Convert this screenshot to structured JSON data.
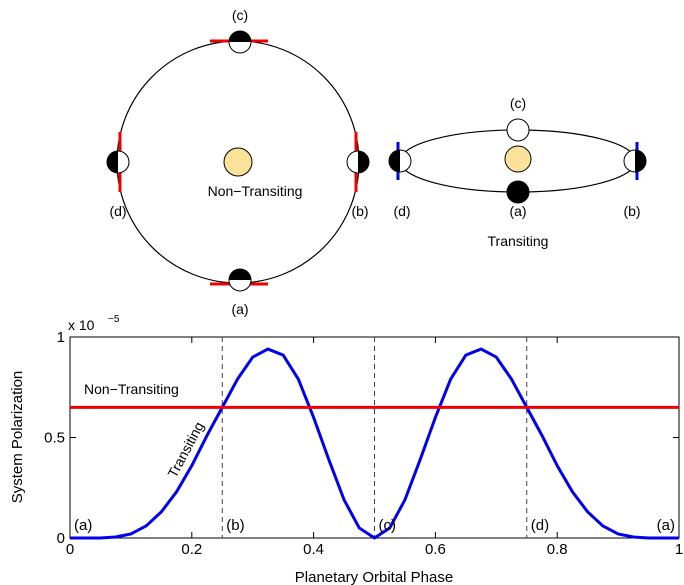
{
  "diagram": {
    "left_label": "Non−Transiting",
    "left_phases": {
      "a": "(a)",
      "b": "(b)",
      "c": "(c)",
      "d": "(d)"
    },
    "right_label": "Transiting",
    "right_phases": {
      "a": "(a)",
      "b": "(b)",
      "c": "(c)",
      "d": "(d)"
    }
  },
  "chart_data": {
    "type": "line",
    "x_label": "Planetary Orbital Phase",
    "y_label": "System Polarization",
    "y_multiplier": "x 10",
    "y_multiplier_exponent": "−5",
    "x": [
      0,
      0.025,
      0.05,
      0.075,
      0.1,
      0.125,
      0.15,
      0.175,
      0.2,
      0.225,
      0.25,
      0.275,
      0.3,
      0.325,
      0.35,
      0.375,
      0.4,
      0.425,
      0.45,
      0.475,
      0.5,
      0.525,
      0.55,
      0.575,
      0.6,
      0.625,
      0.65,
      0.675,
      0.7,
      0.725,
      0.75,
      0.775,
      0.8,
      0.825,
      0.85,
      0.875,
      0.9,
      0.925,
      0.95,
      0.975,
      1
    ],
    "series": [
      {
        "name": "Transiting",
        "color": "#0000ee",
        "values": [
          0,
          0,
          0,
          0.005,
          0.02,
          0.06,
          0.13,
          0.23,
          0.36,
          0.51,
          0.65,
          0.79,
          0.9,
          0.94,
          0.91,
          0.79,
          0.6,
          0.39,
          0.19,
          0.05,
          0,
          0.05,
          0.19,
          0.39,
          0.6,
          0.79,
          0.91,
          0.94,
          0.9,
          0.79,
          0.65,
          0.51,
          0.36,
          0.23,
          0.13,
          0.06,
          0.02,
          0.005,
          0,
          0,
          0
        ]
      },
      {
        "name": "Non−Transiting",
        "color": "#ee0000",
        "values": [
          0.65,
          0.65,
          0.65,
          0.65,
          0.65,
          0.65,
          0.65,
          0.65,
          0.65,
          0.65,
          0.65,
          0.65,
          0.65,
          0.65,
          0.65,
          0.65,
          0.65,
          0.65,
          0.65,
          0.65,
          0.65,
          0.65,
          0.65,
          0.65,
          0.65,
          0.65,
          0.65,
          0.65,
          0.65,
          0.65,
          0.65,
          0.65,
          0.65,
          0.65,
          0.65,
          0.65,
          0.65,
          0.65,
          0.65,
          0.65,
          0.65
        ]
      }
    ],
    "xlim": [
      0,
      1
    ],
    "ylim": [
      0,
      1
    ],
    "xticks": [
      0,
      0.2,
      0.4,
      0.6,
      0.8,
      1
    ],
    "yticks": [
      0,
      0.5,
      1
    ],
    "vlines": [
      0.25,
      0.5,
      0.75
    ],
    "phase_labels": [
      {
        "x": 0,
        "text": "(a)"
      },
      {
        "x": 0.25,
        "text": "(b)"
      },
      {
        "x": 0.5,
        "text": "(c)"
      },
      {
        "x": 0.75,
        "text": "(d)"
      },
      {
        "x": 1,
        "text": "(a)"
      }
    ]
  }
}
